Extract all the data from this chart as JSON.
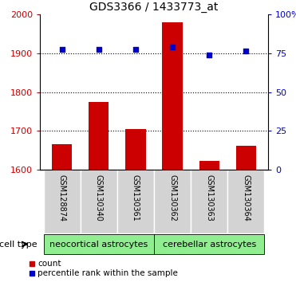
{
  "title": "GDS3366 / 1433773_at",
  "categories": [
    "GSM128874",
    "GSM130340",
    "GSM130361",
    "GSM130362",
    "GSM130363",
    "GSM130364"
  ],
  "bar_values": [
    1665,
    1775,
    1705,
    1980,
    1622,
    1662
  ],
  "percentile_values": [
    1910,
    1910,
    1910,
    1915,
    1895,
    1905
  ],
  "bar_color": "#cc0000",
  "dot_color": "#0000cc",
  "ylim_left": [
    1600,
    2000
  ],
  "ylim_right": [
    0,
    100
  ],
  "yticks_left": [
    1600,
    1700,
    1800,
    1900,
    2000
  ],
  "yticks_right": [
    0,
    25,
    50,
    75,
    100
  ],
  "ytick_labels_right": [
    "0",
    "25",
    "50",
    "75",
    "100%"
  ],
  "grid_values": [
    1700,
    1800,
    1900
  ],
  "group1_label": "neocortical astrocytes",
  "group2_label": "cerebellar astrocytes",
  "group1_indices": [
    0,
    1,
    2
  ],
  "group2_indices": [
    3,
    4,
    5
  ],
  "group_bg_color": "#90ee90",
  "tick_label_bg": "#d3d3d3",
  "cell_type_label": "cell type",
  "legend_count_label": "count",
  "legend_pct_label": "percentile rank within the sample",
  "bar_width": 0.55,
  "title_fontsize": 10,
  "tick_fontsize": 8
}
